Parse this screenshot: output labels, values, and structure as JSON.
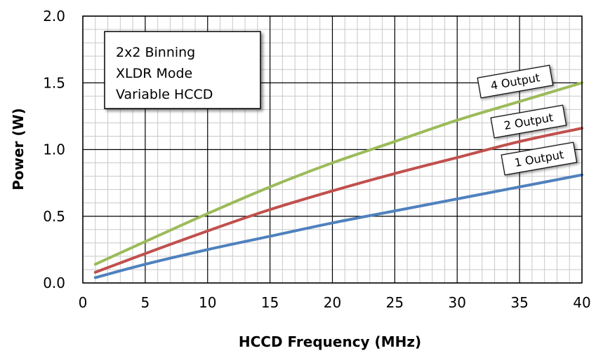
{
  "chart_data": {
    "type": "line",
    "xlabel": "HCCD Frequency (MHz)",
    "ylabel": "Power  (W)",
    "xlim": [
      0,
      40
    ],
    "ylim": [
      0,
      2.0
    ],
    "x_ticks": [
      "0",
      "5",
      "10",
      "15",
      "20",
      "25",
      "30",
      "35",
      "40"
    ],
    "y_ticks": [
      "0.0",
      "0.5",
      "1.0",
      "1.5",
      "2.0"
    ],
    "grid": true,
    "annotation_box": [
      "2x2 Binning",
      "XLDR Mode",
      "Variable HCCD"
    ],
    "series": [
      {
        "name": "4 Output",
        "color": "#9bbb59",
        "x": [
          1,
          5,
          10,
          15,
          20,
          25,
          30,
          35,
          40
        ],
        "y": [
          0.14,
          0.31,
          0.52,
          0.72,
          0.9,
          1.06,
          1.22,
          1.36,
          1.5
        ]
      },
      {
        "name": "2 Output",
        "color": "#c0504d",
        "x": [
          1,
          5,
          10,
          15,
          20,
          25,
          30,
          35,
          40
        ],
        "y": [
          0.08,
          0.22,
          0.39,
          0.55,
          0.69,
          0.82,
          0.94,
          1.06,
          1.16
        ]
      },
      {
        "name": "1 Output",
        "color": "#4f81bd",
        "x": [
          1,
          5,
          10,
          15,
          20,
          25,
          30,
          35,
          40
        ],
        "y": [
          0.04,
          0.14,
          0.25,
          0.35,
          0.45,
          0.54,
          0.63,
          0.72,
          0.81
        ]
      }
    ]
  }
}
